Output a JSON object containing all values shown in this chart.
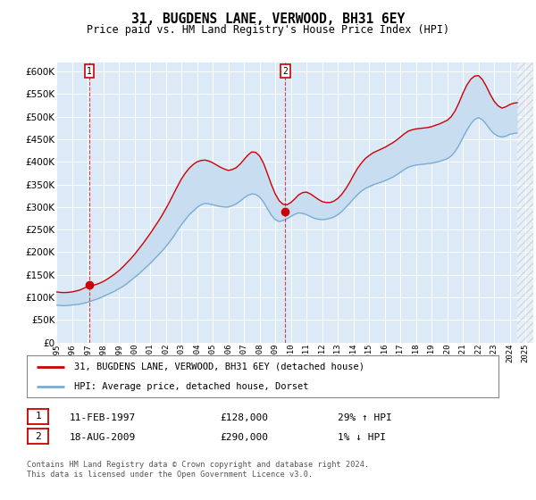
{
  "title": "31, BUGDENS LANE, VERWOOD, BH31 6EY",
  "subtitle": "Price paid vs. HM Land Registry's House Price Index (HPI)",
  "legend_line1": "31, BUGDENS LANE, VERWOOD, BH31 6EY (detached house)",
  "legend_line2": "HPI: Average price, detached house, Dorset",
  "annotation1_label": "1",
  "annotation1_date": "11-FEB-1997",
  "annotation1_price": "£128,000",
  "annotation1_hpi": "29% ↑ HPI",
  "annotation1_year": 1997.12,
  "annotation1_value": 128000,
  "annotation2_label": "2",
  "annotation2_date": "18-AUG-2009",
  "annotation2_price": "£290,000",
  "annotation2_hpi": "1% ↓ HPI",
  "annotation2_year": 2009.63,
  "annotation2_value": 290000,
  "footer": "Contains HM Land Registry data © Crown copyright and database right 2024.\nThis data is licensed under the Open Government Licence v3.0.",
  "ylim": [
    0,
    620000
  ],
  "yticks": [
    0,
    50000,
    100000,
    150000,
    200000,
    250000,
    300000,
    350000,
    400000,
    450000,
    500000,
    550000,
    600000
  ],
  "xlim": [
    1995.0,
    2025.5
  ],
  "bg_color": "#dce9f7",
  "red_line_color": "#cc0000",
  "blue_line_color": "#7aadd4",
  "fill_color": "#c8ddf0",
  "hpi_years": [
    1995.0,
    1995.25,
    1995.5,
    1995.75,
    1996.0,
    1996.25,
    1996.5,
    1996.75,
    1997.0,
    1997.25,
    1997.5,
    1997.75,
    1998.0,
    1998.25,
    1998.5,
    1998.75,
    1999.0,
    1999.25,
    1999.5,
    1999.75,
    2000.0,
    2000.25,
    2000.5,
    2000.75,
    2001.0,
    2001.25,
    2001.5,
    2001.75,
    2002.0,
    2002.25,
    2002.5,
    2002.75,
    2003.0,
    2003.25,
    2003.5,
    2003.75,
    2004.0,
    2004.25,
    2004.5,
    2004.75,
    2005.0,
    2005.25,
    2005.5,
    2005.75,
    2006.0,
    2006.25,
    2006.5,
    2006.75,
    2007.0,
    2007.25,
    2007.5,
    2007.75,
    2008.0,
    2008.25,
    2008.5,
    2008.75,
    2009.0,
    2009.25,
    2009.5,
    2009.75,
    2010.0,
    2010.25,
    2010.5,
    2010.75,
    2011.0,
    2011.25,
    2011.5,
    2011.75,
    2012.0,
    2012.25,
    2012.5,
    2012.75,
    2013.0,
    2013.25,
    2013.5,
    2013.75,
    2014.0,
    2014.25,
    2014.5,
    2014.75,
    2015.0,
    2015.25,
    2015.5,
    2015.75,
    2016.0,
    2016.25,
    2016.5,
    2016.75,
    2017.0,
    2017.25,
    2017.5,
    2017.75,
    2018.0,
    2018.25,
    2018.5,
    2018.75,
    2019.0,
    2019.25,
    2019.5,
    2019.75,
    2020.0,
    2020.25,
    2020.5,
    2020.75,
    2021.0,
    2021.25,
    2021.5,
    2021.75,
    2022.0,
    2022.25,
    2022.5,
    2022.75,
    2023.0,
    2023.25,
    2023.5,
    2023.75,
    2024.0,
    2024.25,
    2024.5
  ],
  "hpi_values": [
    83000,
    82000,
    81500,
    82000,
    83000,
    84000,
    85000,
    87000,
    89000,
    92000,
    95000,
    98000,
    102000,
    106000,
    110000,
    114000,
    119000,
    124000,
    130000,
    137000,
    144000,
    151000,
    159000,
    167000,
    175000,
    184000,
    193000,
    202000,
    212000,
    223000,
    235000,
    248000,
    261000,
    272000,
    283000,
    291000,
    299000,
    305000,
    308000,
    307000,
    305000,
    303000,
    301000,
    300000,
    300000,
    303000,
    307000,
    313000,
    320000,
    326000,
    329000,
    328000,
    322000,
    311000,
    296000,
    282000,
    272000,
    268000,
    270000,
    274000,
    279000,
    284000,
    287000,
    286000,
    283000,
    279000,
    275000,
    273000,
    272000,
    273000,
    275000,
    278000,
    283000,
    290000,
    299000,
    308000,
    318000,
    327000,
    335000,
    341000,
    345000,
    349000,
    352000,
    355000,
    358000,
    362000,
    366000,
    371000,
    377000,
    383000,
    388000,
    391000,
    393000,
    394000,
    395000,
    396000,
    397000,
    399000,
    401000,
    404000,
    407000,
    413000,
    423000,
    437000,
    454000,
    470000,
    484000,
    494000,
    498000,
    493000,
    483000,
    471000,
    462000,
    457000,
    455000,
    457000,
    461000,
    463000,
    464000
  ],
  "prop_years": [
    1995.0,
    1995.25,
    1995.5,
    1995.75,
    1996.0,
    1996.25,
    1996.5,
    1996.75,
    1997.0,
    1997.25,
    1997.5,
    1997.75,
    1998.0,
    1998.25,
    1998.5,
    1998.75,
    1999.0,
    1999.25,
    1999.5,
    1999.75,
    2000.0,
    2000.25,
    2000.5,
    2000.75,
    2001.0,
    2001.25,
    2001.5,
    2001.75,
    2002.0,
    2002.25,
    2002.5,
    2002.75,
    2003.0,
    2003.25,
    2003.5,
    2003.75,
    2004.0,
    2004.25,
    2004.5,
    2004.75,
    2005.0,
    2005.25,
    2005.5,
    2005.75,
    2006.0,
    2006.25,
    2006.5,
    2006.75,
    2007.0,
    2007.25,
    2007.5,
    2007.75,
    2008.0,
    2008.25,
    2008.5,
    2008.75,
    2009.0,
    2009.25,
    2009.5,
    2009.75,
    2010.0,
    2010.25,
    2010.5,
    2010.75,
    2011.0,
    2011.25,
    2011.5,
    2011.75,
    2012.0,
    2012.25,
    2012.5,
    2012.75,
    2013.0,
    2013.25,
    2013.5,
    2013.75,
    2014.0,
    2014.25,
    2014.5,
    2014.75,
    2015.0,
    2015.25,
    2015.5,
    2015.75,
    2016.0,
    2016.25,
    2016.5,
    2016.75,
    2017.0,
    2017.25,
    2017.5,
    2017.75,
    2018.0,
    2018.25,
    2018.5,
    2018.75,
    2019.0,
    2019.25,
    2019.5,
    2019.75,
    2020.0,
    2020.25,
    2020.5,
    2020.75,
    2021.0,
    2021.25,
    2021.5,
    2021.75,
    2022.0,
    2022.25,
    2022.5,
    2022.75,
    2023.0,
    2023.25,
    2023.5,
    2023.75,
    2024.0,
    2024.25,
    2024.5
  ],
  "prop_values": [
    112000,
    111000,
    110500,
    111000,
    112000,
    114000,
    116000,
    120000,
    124000,
    126000,
    128000,
    131000,
    135000,
    140000,
    146000,
    152000,
    159000,
    167000,
    176000,
    185000,
    195000,
    206000,
    217000,
    229000,
    241000,
    254000,
    267000,
    281000,
    296000,
    312000,
    329000,
    346000,
    362000,
    375000,
    386000,
    394000,
    400000,
    403000,
    404000,
    402000,
    398000,
    393000,
    388000,
    384000,
    381000,
    383000,
    387000,
    395000,
    405000,
    415000,
    422000,
    421000,
    413000,
    397000,
    374000,
    350000,
    329000,
    314000,
    306000,
    305000,
    310000,
    318000,
    327000,
    332000,
    333000,
    329000,
    323000,
    317000,
    312000,
    310000,
    310000,
    313000,
    319000,
    328000,
    340000,
    354000,
    370000,
    385000,
    397000,
    407000,
    414000,
    420000,
    424000,
    428000,
    432000,
    437000,
    442000,
    448000,
    455000,
    462000,
    468000,
    471000,
    473000,
    474000,
    475000,
    476000,
    478000,
    481000,
    484000,
    488000,
    492000,
    500000,
    513000,
    531000,
    552000,
    570000,
    583000,
    590000,
    591000,
    582000,
    567000,
    549000,
    534000,
    524000,
    519000,
    522000,
    527000,
    530000,
    531000
  ],
  "hatch_start": 2024.5,
  "hatch_end": 2026.0
}
